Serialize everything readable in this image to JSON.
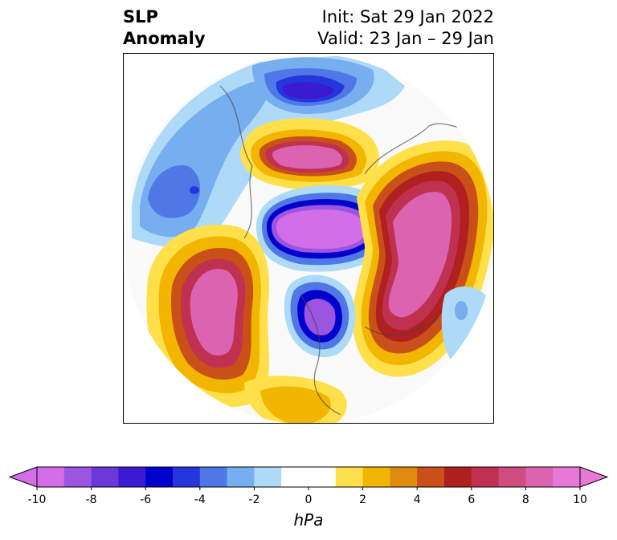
{
  "title": {
    "variable": "SLP",
    "subtitle": "Anomaly",
    "init": "Init: Sat 29 Jan 2022",
    "valid": "Valid: 23 Jan – 29 Jan"
  },
  "colorbar": {
    "unit": "hPa",
    "min": -10,
    "max": 10,
    "step": 1,
    "extend": "both",
    "ticks": [
      "-10",
      "-8",
      "-6",
      "-4",
      "-2",
      "0",
      "2",
      "4",
      "6",
      "8",
      "10"
    ],
    "colors": [
      "#d46de8",
      "#9b55e0",
      "#6a38d8",
      "#3a1bd2",
      "#0000cc",
      "#2436dc",
      "#4f78e6",
      "#77aef0",
      "#aedaf8",
      "#ffffff",
      "#ffffff",
      "#ffe04a",
      "#f2b600",
      "#e08a10",
      "#c95018",
      "#b02020",
      "#c03050",
      "#cf4c80",
      "#dc63b0",
      "#e878d8"
    ]
  }
}
